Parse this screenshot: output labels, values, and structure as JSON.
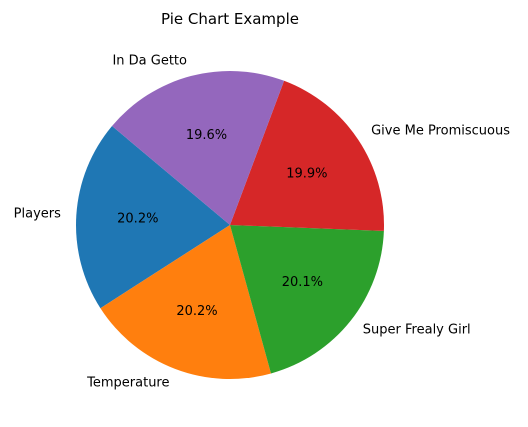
{
  "chart_data": {
    "type": "pie",
    "title": "Pie Chart Example",
    "start_angle_deg": 140,
    "direction": "counterclockwise",
    "slices": [
      {
        "label": "Players",
        "value": 20.2,
        "pct_label": "20.2%",
        "color": "#1f77b4"
      },
      {
        "label": "Temperature",
        "value": 20.2,
        "pct_label": "20.2%",
        "color": "#ff7f0e"
      },
      {
        "label": "Super Frealy Girl",
        "value": 20.1,
        "pct_label": "20.1%",
        "color": "#2ca02c"
      },
      {
        "label": "Give Me Promiscuous",
        "value": 19.9,
        "pct_label": "19.9%",
        "color": "#d62728"
      },
      {
        "label": "In Da Getto",
        "value": 19.6,
        "pct_label": "19.6%",
        "color": "#9467bd"
      }
    ]
  }
}
